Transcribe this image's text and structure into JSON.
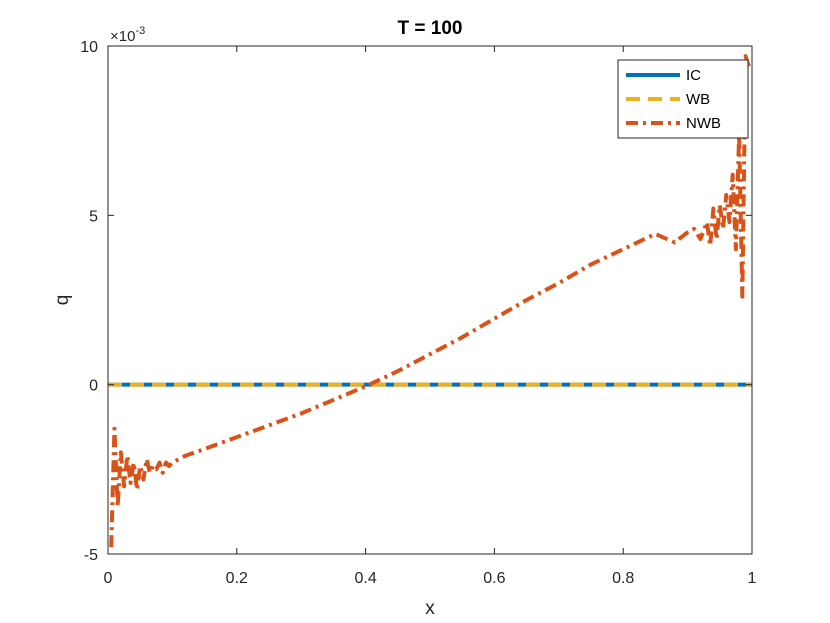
{
  "chart_data": {
    "type": "line",
    "title": "T = 100",
    "xlabel": "x",
    "ylabel": "q",
    "xlim": [
      0,
      1
    ],
    "ylim": [
      -5,
      10
    ],
    "y_exponent_label": "×10-3",
    "y_exponent_base": "×10",
    "y_exponent_power": "-3",
    "x_ticks": [
      "0",
      "0.2",
      "0.4",
      "0.6",
      "0.8",
      "1"
    ],
    "x_tick_values": [
      0,
      0.2,
      0.4,
      0.6,
      0.8,
      1
    ],
    "y_ticks": [
      "-5",
      "0",
      "5",
      "10"
    ],
    "y_tick_values": [
      -5,
      0,
      5,
      10
    ],
    "legend_position": "top-right",
    "grid": false,
    "series": [
      {
        "name": "IC",
        "color": "#0072BD",
        "style": "solid",
        "x": [
          0,
          1
        ],
        "y": [
          0,
          0
        ]
      },
      {
        "name": "WB",
        "color": "#EDB120",
        "style": "dashed",
        "x": [
          0,
          1
        ],
        "y": [
          0,
          0
        ]
      },
      {
        "name": "NWB",
        "color": "#D95319",
        "style": "dashdot",
        "x": [
          0.005,
          0.01,
          0.015,
          0.02,
          0.025,
          0.03,
          0.035,
          0.04,
          0.045,
          0.05,
          0.055,
          0.06,
          0.065,
          0.07,
          0.075,
          0.08,
          0.085,
          0.09,
          0.095,
          0.1,
          0.12,
          0.15,
          0.2,
          0.25,
          0.3,
          0.35,
          0.4,
          0.45,
          0.5,
          0.55,
          0.6,
          0.65,
          0.7,
          0.75,
          0.8,
          0.85,
          0.88,
          0.9,
          0.91,
          0.92,
          0.93,
          0.935,
          0.94,
          0.945,
          0.95,
          0.955,
          0.96,
          0.965,
          0.97,
          0.975,
          0.98,
          0.985,
          0.99,
          0.995
        ],
        "y": [
          -4.8,
          -1.3,
          -3.6,
          -2.0,
          -3.0,
          -2.1,
          -2.9,
          -2.3,
          -3.1,
          -2.4,
          -2.8,
          -2.2,
          -2.6,
          -2.4,
          -2.5,
          -2.3,
          -2.6,
          -2.3,
          -2.4,
          -2.3,
          -2.1,
          -1.9,
          -1.55,
          -1.2,
          -0.85,
          -0.45,
          -0.05,
          0.4,
          0.9,
          1.4,
          1.95,
          2.5,
          3.0,
          3.55,
          4.0,
          4.45,
          4.2,
          4.5,
          4.6,
          4.3,
          4.8,
          4.1,
          5.2,
          4.3,
          5.3,
          4.6,
          5.6,
          4.8,
          6.2,
          4.0,
          7.4,
          2.6,
          9.7,
          9.4
        ]
      }
    ]
  }
}
